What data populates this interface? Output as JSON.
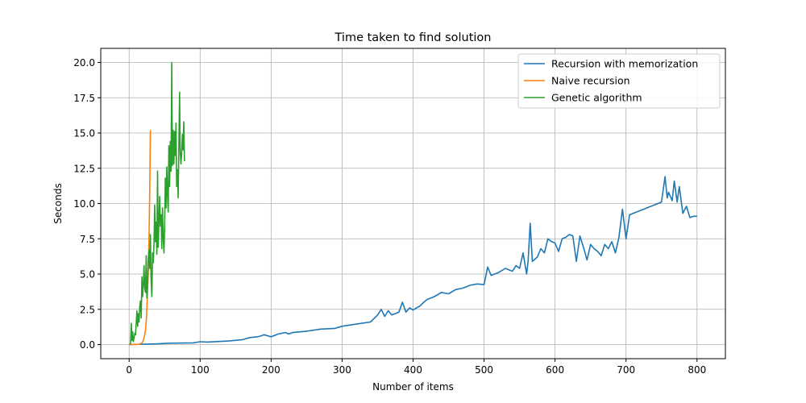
{
  "chart_data": {
    "type": "line",
    "title": "Time taken to find solution",
    "xlabel": "Number of items",
    "ylabel": "Seconds",
    "xlim": [
      -40,
      840
    ],
    "ylim": [
      -1.0,
      21.0
    ],
    "xticks": [
      0,
      100,
      200,
      300,
      400,
      500,
      600,
      700,
      800
    ],
    "yticks": [
      0.0,
      2.5,
      5.0,
      7.5,
      10.0,
      12.5,
      15.0,
      17.5,
      20.0
    ],
    "xtick_labels": [
      "0",
      "100",
      "200",
      "300",
      "400",
      "500",
      "600",
      "700",
      "800"
    ],
    "ytick_labels": [
      "0.0",
      "2.5",
      "5.0",
      "7.5",
      "10.0",
      "12.5",
      "15.0",
      "17.5",
      "20.0"
    ],
    "grid": true,
    "legend_position": "top-right",
    "series": [
      {
        "name": "Recursion with memorization",
        "color": "#1f77b4",
        "x": [
          0,
          40,
          55,
          90,
          100,
          110,
          140,
          160,
          170,
          180,
          185,
          190,
          200,
          210,
          220,
          225,
          230,
          250,
          270,
          290,
          300,
          320,
          340,
          350,
          355,
          360,
          365,
          370,
          380,
          385,
          390,
          395,
          400,
          410,
          415,
          420,
          430,
          440,
          450,
          460,
          470,
          480,
          490,
          500,
          505,
          510,
          520,
          530,
          540,
          545,
          550,
          555,
          560,
          562,
          565,
          568,
          575,
          580,
          585,
          590,
          595,
          600,
          605,
          610,
          615,
          620,
          625,
          630,
          635,
          640,
          645,
          650,
          655,
          660,
          665,
          670,
          675,
          680,
          685,
          690,
          695,
          700,
          705,
          710,
          720,
          730,
          740,
          750,
          755,
          758,
          760,
          765,
          768,
          772,
          775,
          780,
          785,
          790,
          795,
          800
        ],
        "y": [
          0.0,
          0.05,
          0.1,
          0.12,
          0.2,
          0.18,
          0.25,
          0.35,
          0.5,
          0.55,
          0.6,
          0.7,
          0.55,
          0.75,
          0.85,
          0.75,
          0.85,
          0.95,
          1.1,
          1.15,
          1.3,
          1.45,
          1.6,
          2.1,
          2.5,
          2.0,
          2.4,
          2.1,
          2.3,
          3.0,
          2.3,
          2.6,
          2.45,
          2.75,
          3.0,
          3.2,
          3.4,
          3.7,
          3.6,
          3.9,
          4.0,
          4.2,
          4.3,
          4.25,
          5.5,
          4.9,
          5.1,
          5.4,
          5.2,
          5.6,
          5.4,
          6.5,
          5.0,
          5.9,
          8.6,
          5.9,
          6.2,
          6.8,
          6.5,
          7.5,
          7.3,
          7.2,
          6.6,
          7.5,
          7.6,
          7.8,
          7.7,
          5.9,
          7.7,
          6.9,
          6.0,
          7.1,
          6.8,
          6.6,
          6.3,
          7.1,
          6.8,
          7.3,
          6.5,
          7.6,
          9.6,
          7.5,
          9.2,
          9.3,
          9.5,
          9.7,
          9.9,
          10.1,
          11.9,
          10.4,
          10.8,
          10.2,
          11.6,
          10.1,
          11.2,
          9.3,
          9.8,
          9.0,
          9.1,
          9.1
        ]
      },
      {
        "name": "Naive recursion",
        "color": "#ff7f0e",
        "x": [
          0,
          5,
          10,
          14,
          17,
          19,
          21,
          23,
          24,
          25,
          26,
          27,
          28,
          29,
          30
        ],
        "y": [
          0.0,
          0.0,
          0.0,
          0.02,
          0.08,
          0.18,
          0.45,
          1.0,
          1.6,
          2.5,
          3.8,
          5.2,
          7.5,
          11.0,
          15.2
        ]
      },
      {
        "name": "Genetic algorithm",
        "color": "#2ca02c",
        "x": [
          1,
          2,
          3,
          4,
          5,
          6,
          8,
          9,
          11,
          12,
          13,
          14,
          15,
          16,
          17,
          18,
          19,
          20,
          21,
          22,
          23,
          24,
          25,
          26,
          27,
          28,
          29,
          30,
          31,
          32,
          33,
          34,
          35,
          36,
          37,
          38,
          39,
          40,
          41,
          42,
          43,
          44,
          45,
          46,
          47,
          48,
          49,
          50,
          51,
          52,
          53,
          54,
          55,
          56,
          57,
          58,
          59,
          60,
          61,
          62,
          63,
          64,
          65,
          66,
          67,
          68,
          69,
          70,
          71,
          72,
          73,
          74,
          75,
          76,
          77,
          78
        ],
        "y": [
          0.0,
          0.1,
          1.5,
          0.3,
          0.9,
          0.2,
          0.8,
          0.7,
          2.4,
          1.3,
          2.2,
          1.6,
          2.7,
          3.1,
          1.9,
          4.8,
          3.4,
          4.2,
          5.6,
          4.0,
          3.7,
          6.3,
          3.3,
          4.2,
          6.1,
          6.7,
          5.4,
          7.8,
          4.6,
          3.4,
          6.5,
          5.8,
          7.2,
          9.9,
          7.3,
          8.7,
          6.4,
          12.3,
          6.9,
          8.6,
          10.5,
          8.4,
          9.2,
          6.8,
          9.7,
          7.6,
          6.5,
          8.4,
          11.8,
          9.7,
          12.6,
          10.7,
          9.4,
          14.1,
          11.2,
          14.4,
          12.3,
          20.0,
          12.7,
          15.2,
          12.8,
          15.1,
          13.4,
          15.7,
          11.2,
          12.4,
          10.4,
          13.9,
          17.9,
          13.7,
          12.8,
          13.6,
          14.9,
          13.8,
          15.8,
          13.0
        ]
      }
    ]
  }
}
